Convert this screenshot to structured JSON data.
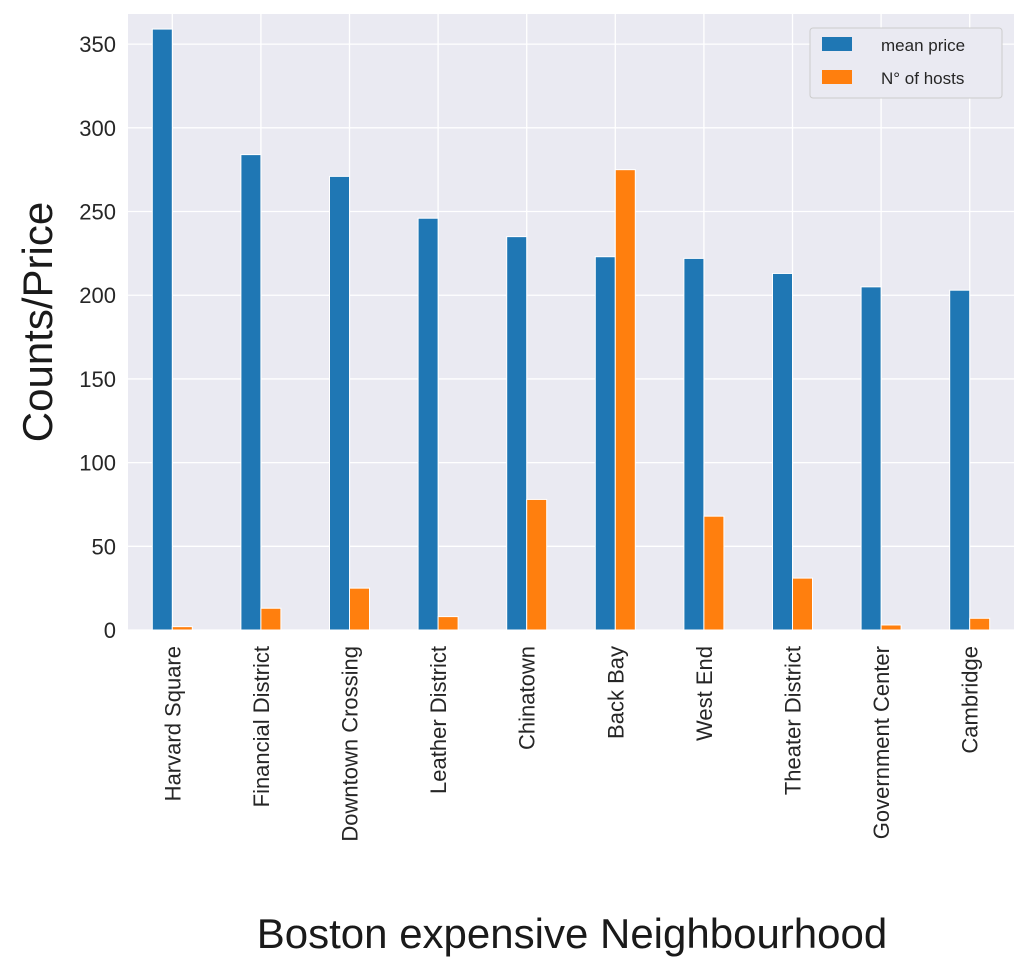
{
  "chart_data": {
    "type": "bar",
    "title": "",
    "xlabel": "Boston expensive Neighbourhood",
    "ylabel": "Counts/Price",
    "ylim": [
      0,
      368
    ],
    "yticks": [
      0,
      50,
      100,
      150,
      200,
      250,
      300,
      350
    ],
    "grid": true,
    "legend_position": "top-right",
    "categories": [
      "Harvard Square",
      "Financial District",
      "Downtown Crossing",
      "Leather District",
      "Chinatown",
      "Back Bay",
      "West End",
      "Theater District",
      "Government Center",
      "Cambridge"
    ],
    "series": [
      {
        "name": "mean price",
        "color": "#1f77b4",
        "values": [
          359,
          284,
          271,
          246,
          235,
          223,
          222,
          213,
          205,
          203
        ]
      },
      {
        "name": "N° of hosts",
        "color": "#ff7f0e",
        "values": [
          2,
          13,
          25,
          8,
          78,
          275,
          68,
          31,
          3,
          7
        ]
      }
    ]
  }
}
